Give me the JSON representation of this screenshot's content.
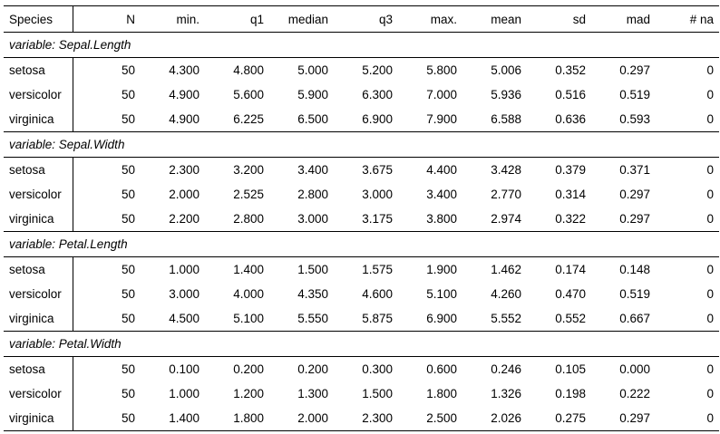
{
  "columns": [
    "Species",
    "N",
    "min.",
    "q1",
    "median",
    "q3",
    "max.",
    "mean",
    "sd",
    "mad",
    "# na"
  ],
  "groups": [
    {
      "label": "variable: Sepal.Length",
      "rows": [
        [
          "setosa",
          "50",
          "4.300",
          "4.800",
          "5.000",
          "5.200",
          "5.800",
          "5.006",
          "0.352",
          "0.297",
          "0"
        ],
        [
          "versicolor",
          "50",
          "4.900",
          "5.600",
          "5.900",
          "6.300",
          "7.000",
          "5.936",
          "0.516",
          "0.519",
          "0"
        ],
        [
          "virginica",
          "50",
          "4.900",
          "6.225",
          "6.500",
          "6.900",
          "7.900",
          "6.588",
          "0.636",
          "0.593",
          "0"
        ]
      ]
    },
    {
      "label": "variable: Sepal.Width",
      "rows": [
        [
          "setosa",
          "50",
          "2.300",
          "3.200",
          "3.400",
          "3.675",
          "4.400",
          "3.428",
          "0.379",
          "0.371",
          "0"
        ],
        [
          "versicolor",
          "50",
          "2.000",
          "2.525",
          "2.800",
          "3.000",
          "3.400",
          "2.770",
          "0.314",
          "0.297",
          "0"
        ],
        [
          "virginica",
          "50",
          "2.200",
          "2.800",
          "3.000",
          "3.175",
          "3.800",
          "2.974",
          "0.322",
          "0.297",
          "0"
        ]
      ]
    },
    {
      "label": "variable: Petal.Length",
      "rows": [
        [
          "setosa",
          "50",
          "1.000",
          "1.400",
          "1.500",
          "1.575",
          "1.900",
          "1.462",
          "0.174",
          "0.148",
          "0"
        ],
        [
          "versicolor",
          "50",
          "3.000",
          "4.000",
          "4.350",
          "4.600",
          "5.100",
          "4.260",
          "0.470",
          "0.519",
          "0"
        ],
        [
          "virginica",
          "50",
          "4.500",
          "5.100",
          "5.550",
          "5.875",
          "6.900",
          "5.552",
          "0.552",
          "0.667",
          "0"
        ]
      ]
    },
    {
      "label": "variable: Petal.Width",
      "rows": [
        [
          "setosa",
          "50",
          "0.100",
          "0.200",
          "0.200",
          "0.300",
          "0.600",
          "0.246",
          "0.105",
          "0.000",
          "0"
        ],
        [
          "versicolor",
          "50",
          "1.000",
          "1.200",
          "1.300",
          "1.500",
          "1.800",
          "1.326",
          "0.198",
          "0.222",
          "0"
        ],
        [
          "virginica",
          "50",
          "1.400",
          "1.800",
          "2.000",
          "2.300",
          "2.500",
          "2.026",
          "0.275",
          "0.297",
          "0"
        ]
      ]
    }
  ]
}
